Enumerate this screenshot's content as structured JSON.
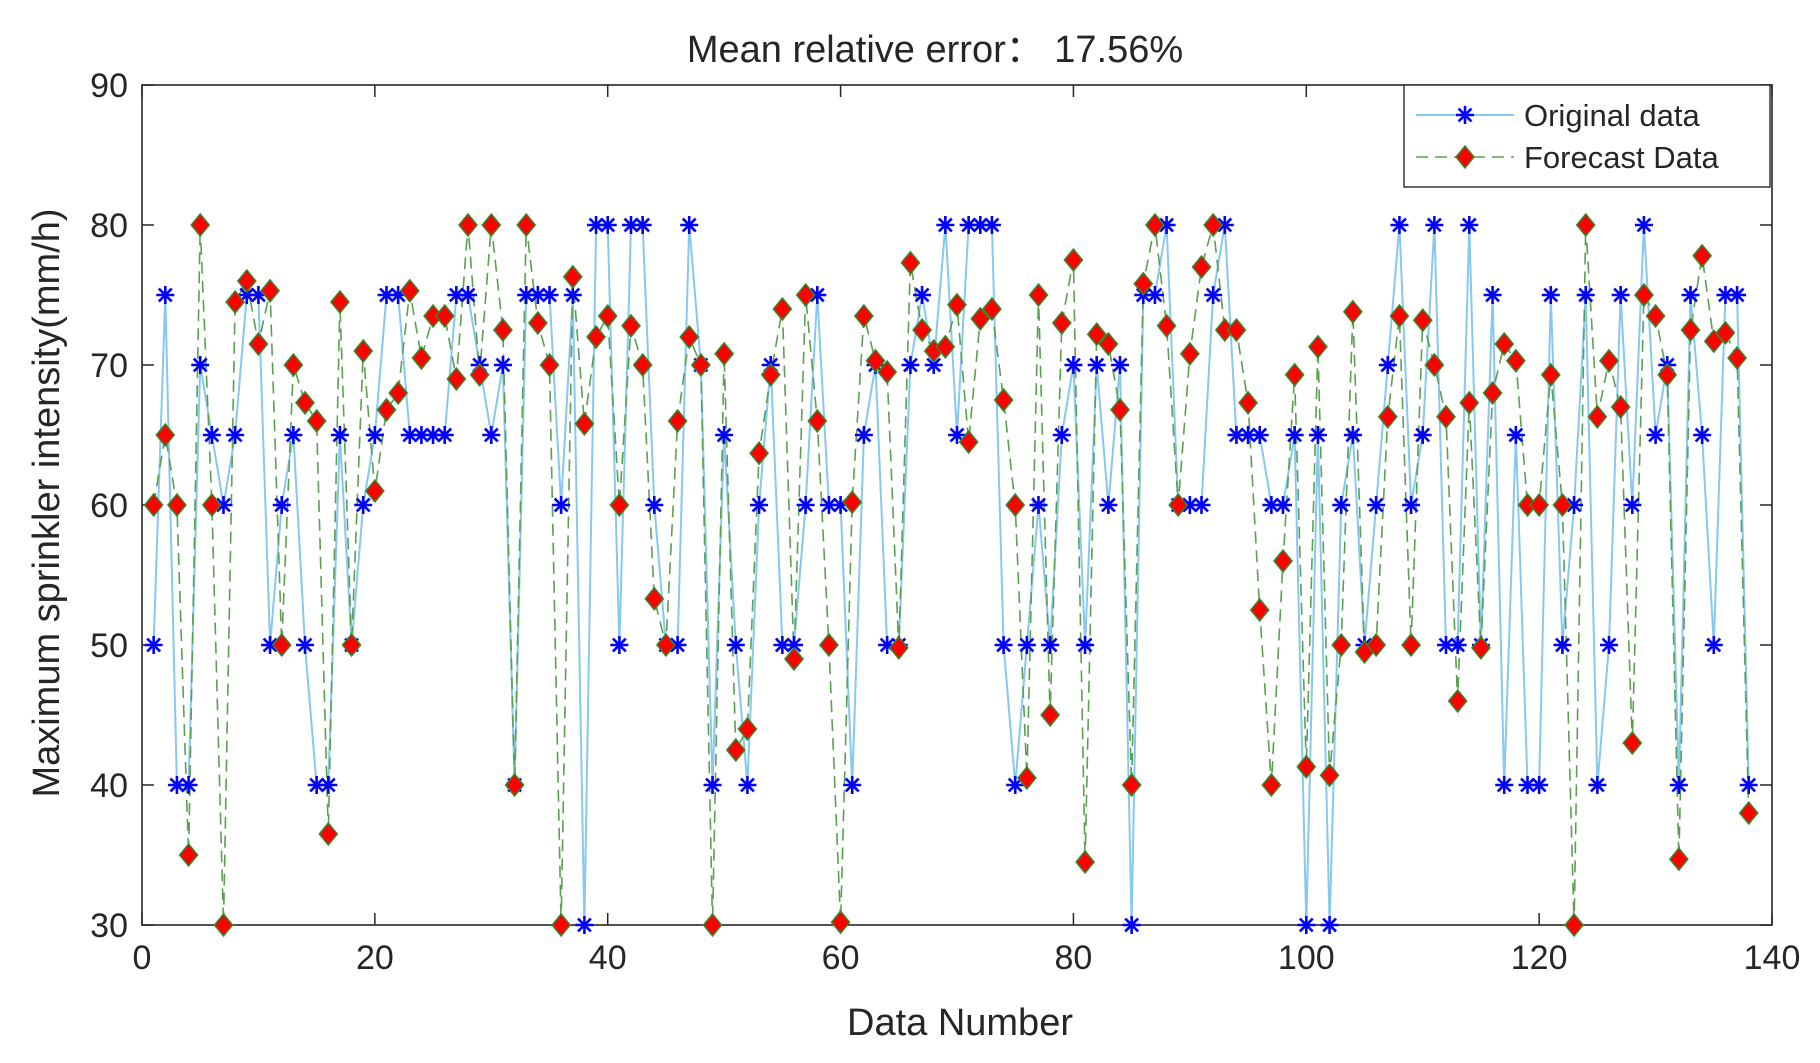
{
  "chart_data": {
    "type": "line",
    "title": "Mean relative error：  17.56%",
    "xlabel": "Data Number",
    "ylabel": "Maximum sprinkler intensity(mm/h)",
    "xlim": [
      0,
      140
    ],
    "ylim": [
      30,
      90
    ],
    "xticks": [
      0,
      20,
      40,
      60,
      80,
      100,
      120,
      140
    ],
    "yticks": [
      30,
      40,
      50,
      60,
      70,
      80,
      90
    ],
    "grid": false,
    "legend_position": "top-right",
    "series": [
      {
        "name": "Original data",
        "style": "solid",
        "marker": "asterisk",
        "line_color": "#87c8f0",
        "marker_color": "#0000ff",
        "values": [
          50,
          75,
          40,
          40,
          70,
          65,
          60,
          65,
          75,
          75,
          50,
          60,
          65,
          50,
          40,
          40,
          65,
          50,
          60,
          65,
          75,
          75,
          65,
          65,
          65,
          65,
          75,
          75,
          70,
          65,
          70,
          40,
          75,
          75,
          75,
          60,
          75,
          30,
          80,
          80,
          50,
          80,
          80,
          60,
          50,
          50,
          80,
          70,
          40,
          65,
          50,
          40,
          60,
          70,
          50,
          50,
          60,
          75,
          60,
          60,
          40,
          65,
          70,
          50,
          50,
          70,
          75,
          70,
          80,
          65,
          80,
          80,
          80,
          50,
          40,
          50,
          60,
          50,
          65,
          70,
          50,
          70,
          60,
          70,
          30,
          75,
          75,
          80,
          60,
          60,
          60,
          75,
          80,
          65,
          65,
          65,
          60,
          60,
          65,
          30,
          65,
          30,
          60,
          65,
          50,
          60,
          70,
          80,
          60,
          65,
          80,
          50,
          50,
          80,
          50,
          75,
          40,
          65,
          40,
          40,
          75,
          50,
          60,
          75,
          40,
          50,
          75,
          60,
          80,
          65,
          70,
          40,
          75,
          65,
          50,
          75,
          75,
          40
        ]
      },
      {
        "name": "Forecast Data",
        "style": "dashed",
        "marker": "diamond",
        "line_color": "#5aa050",
        "marker_color": "#ff0000",
        "marker_edge": "#2e8b2e",
        "values": [
          60,
          65,
          60,
          35,
          80,
          60,
          30,
          74.5,
          76,
          71.5,
          75.3,
          50,
          70,
          67.3,
          66,
          36.5,
          74.5,
          50,
          71,
          61,
          66.8,
          68,
          75.3,
          70.5,
          73.5,
          73.5,
          69,
          80,
          69.3,
          80,
          72.5,
          40,
          80,
          73,
          70,
          30,
          76.3,
          65.8,
          72,
          73.5,
          60,
          72.8,
          70,
          53.3,
          50,
          66,
          72,
          70,
          30,
          70.8,
          42.5,
          44,
          63.7,
          69.3,
          74,
          49,
          75,
          66,
          50,
          30.2,
          60.2,
          73.5,
          70.3,
          69.5,
          49.8,
          77.3,
          72.5,
          71,
          71.3,
          74.3,
          64.5,
          73.3,
          74,
          67.5,
          60,
          40.5,
          75,
          45,
          73,
          77.5,
          34.5,
          72.2,
          71.5,
          66.8,
          40,
          75.8,
          80,
          72.8,
          60,
          70.8,
          77,
          80,
          72.5,
          72.5,
          67.3,
          52.5,
          40,
          56,
          69.3,
          41.3,
          71.3,
          40.7,
          50,
          73.8,
          49.5,
          50,
          66.3,
          73.5,
          50,
          73.2,
          70,
          66.3,
          46,
          67.3,
          49.8,
          68,
          71.5,
          70.3,
          60,
          60,
          69.3,
          60,
          30,
          80,
          66.3,
          70.3,
          67,
          43,
          75,
          73.5,
          69.3,
          34.7,
          72.5,
          77.8,
          71.7,
          72.3,
          70.5,
          38
        ]
      }
    ]
  }
}
